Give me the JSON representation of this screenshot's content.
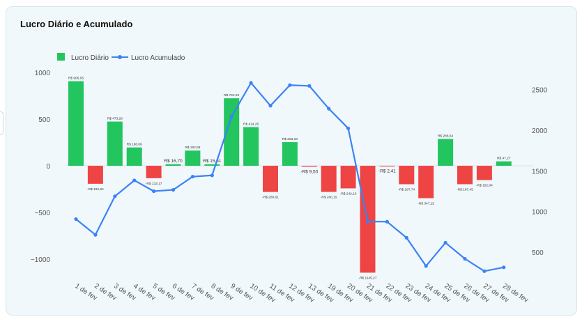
{
  "card": {
    "title": "Lucro Diário e Acumulado"
  },
  "legend": {
    "daily_label": "Lucro Diário",
    "cumulative_label": "Lucro Acumulado"
  },
  "colors": {
    "positive": "#22c55e",
    "negative": "#ef4444",
    "line": "#3b82f6",
    "background": "#f1f8fb"
  },
  "chart_data": {
    "type": "bar+line",
    "categories": [
      "1 de fev",
      "2 de fev",
      "3 de fev",
      "4 de fev",
      "5 de fev",
      "6 de fev",
      "7 de fev",
      "8 de fev",
      "9 de fev",
      "10 de fev",
      "11 de fev",
      "12 de fev",
      "13 de fev",
      "19 de fev",
      "20 de fev",
      "21 de fev",
      "22 de fev",
      "23 de fev",
      "24 de fev",
      "25 de fev",
      "26 de fev",
      "27 de fev",
      "28 de fev"
    ],
    "series": [
      {
        "name": "Lucro Diário",
        "type": "bar",
        "axis": "left",
        "values": [
          906.05,
          -192.94,
          473.28,
          196.06,
          -133.17,
          16.7,
          162.58,
          15.51,
          722.92,
          414.25,
          -280.61,
          253.18,
          -9.5,
          -280.15,
          -242.1,
          -1145.27,
          -2.41,
          -197.74,
          -347.15,
          286.64,
          -197.45,
          -152.84,
          47.27
        ]
      },
      {
        "name": "Lucro Acumulado",
        "type": "line",
        "axis": "right",
        "values": [
          906.05,
          713.11,
          1186.39,
          1382.45,
          1249.28,
          1265.98,
          1428.56,
          1444.07,
          2166.99,
          2581.24,
          2300.63,
          2553.81,
          2544.31,
          2264.16,
          2022.06,
          876.79,
          874.38,
          676.64,
          329.49,
          616.13,
          418.68,
          265.84,
          313.11
        ]
      }
    ],
    "data_labels": [
      "R$ 906,05",
      "-R$ 192,94",
      "R$ 473,28",
      "R$ 196,06",
      "-R$ 133,17",
      "R$ 16,70",
      "R$ 162,58",
      "R$ 15,51",
      "R$ 722,92",
      "R$ 414,25",
      "-R$ 280,61",
      "R$ 253,18",
      "-R$ 9,50",
      "-R$ 280,15",
      "-R$ 242,10",
      "-R$ 1145,27",
      "-R$ 2,41",
      "-R$ 197,74",
      "-R$ 347,15",
      "R$ 286,64",
      "-R$ 197,45",
      "-R$ 152,84",
      "R$ 47,27"
    ],
    "left_axis": {
      "ylim": [
        -1150,
        1000
      ],
      "ticks": [
        1000,
        500,
        0,
        -500,
        -1000
      ],
      "tick_labels": [
        "1000",
        "500",
        "0",
        "−500",
        "−1000"
      ]
    },
    "right_axis": {
      "ylim": [
        150,
        2700
      ],
      "ticks": [
        2500,
        2000,
        1500,
        1000,
        500
      ],
      "tick_labels": [
        "2500",
        "2000",
        "1500",
        "1000",
        "500"
      ]
    },
    "legend_position": "top-left",
    "grid": false
  }
}
